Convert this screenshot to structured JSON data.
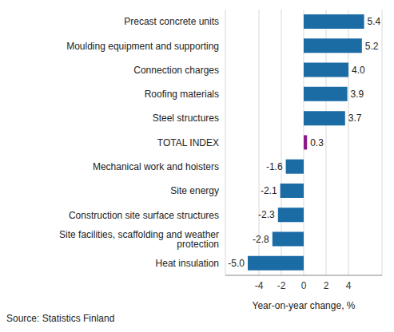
{
  "chart_data": {
    "type": "bar",
    "orientation": "horizontal",
    "categories": [
      "Precast concrete units",
      "Moulding equipment and supporting",
      "Connection charges",
      "Roofing materials",
      "Steel structures",
      "TOTAL INDEX",
      "Mechanical work and hoisters",
      "Site energy",
      "Construction site surface structures",
      "Site facilities, scaffolding and weather protection",
      "Heat insulation"
    ],
    "values": [
      5.4,
      5.2,
      4.0,
      3.9,
      3.7,
      0.3,
      -1.6,
      -2.1,
      -2.3,
      -2.8,
      -5.0
    ],
    "value_labels": [
      "5.4",
      "5.2",
      "4.0",
      "3.9",
      "3.7",
      "0.3",
      "-1.6",
      "-2.1",
      "-2.3",
      "-2.8",
      "-5.0"
    ],
    "colors": [
      "#1b6ba5",
      "#1b6ba5",
      "#1b6ba5",
      "#1b6ba5",
      "#1b6ba5",
      "#8a1b88",
      "#1b6ba5",
      "#1b6ba5",
      "#1b6ba5",
      "#1b6ba5",
      "#1b6ba5"
    ],
    "data_labels": true,
    "xlabel": "Year-on-year change, %",
    "xlim": [
      -7,
      7
    ],
    "xticks": [
      -4,
      -2,
      0,
      2,
      4
    ],
    "grid": true,
    "source": "Source: Statistics Finland"
  }
}
